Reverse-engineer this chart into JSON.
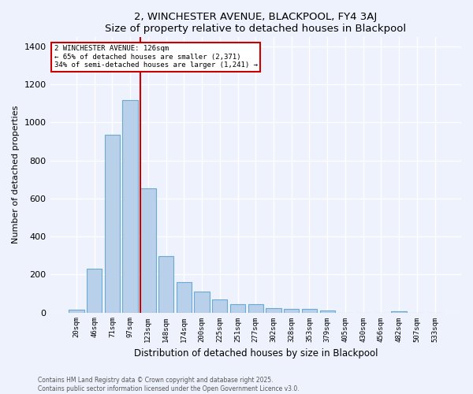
{
  "title": "2, WINCHESTER AVENUE, BLACKPOOL, FY4 3AJ",
  "subtitle": "Size of property relative to detached houses in Blackpool",
  "xlabel": "Distribution of detached houses by size in Blackpool",
  "ylabel": "Number of detached properties",
  "categories": [
    "20sqm",
    "46sqm",
    "71sqm",
    "97sqm",
    "123sqm",
    "148sqm",
    "174sqm",
    "200sqm",
    "225sqm",
    "251sqm",
    "277sqm",
    "302sqm",
    "328sqm",
    "353sqm",
    "379sqm",
    "405sqm",
    "430sqm",
    "456sqm",
    "482sqm",
    "507sqm",
    "533sqm"
  ],
  "values": [
    15,
    230,
    935,
    1120,
    655,
    295,
    160,
    110,
    68,
    45,
    42,
    25,
    18,
    18,
    10,
    0,
    0,
    0,
    8,
    0,
    0
  ],
  "bar_color": "#b8d0ea",
  "bar_edge_color": "#6aaad4",
  "vline_color": "#cc0000",
  "vline_pos": 3.575,
  "annotation_text": "2 WINCHESTER AVENUE: 126sqm\n← 65% of detached houses are smaller (2,371)\n34% of semi-detached houses are larger (1,241) →",
  "annotation_box_color": "#ffffff",
  "annotation_box_edge": "#cc0000",
  "background_color": "#eef2fc",
  "grid_color": "#ffffff",
  "footer1": "Contains HM Land Registry data © Crown copyright and database right 2025.",
  "footer2": "Contains public sector information licensed under the Open Government Licence v3.0.",
  "ylim": [
    0,
    1450
  ],
  "yticks": [
    0,
    200,
    400,
    600,
    800,
    1000,
    1200,
    1400
  ]
}
